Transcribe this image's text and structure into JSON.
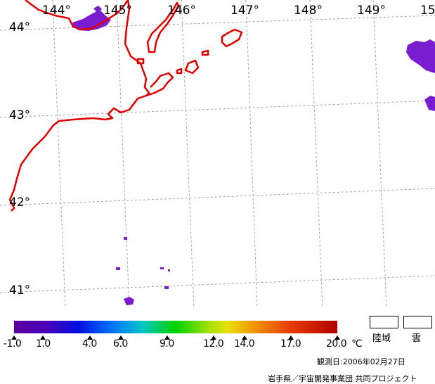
{
  "map": {
    "longitude_labels": [
      "144°",
      "145°",
      "146°",
      "147°",
      "148°",
      "149°",
      "15"
    ],
    "latitude_labels": [
      "44°",
      "43°",
      "42°",
      "41°"
    ],
    "colors": {
      "coastline": "#e00000",
      "cloud": "#7a1ccf",
      "grid": "#999999"
    }
  },
  "legend": {
    "ticks": [
      "-1.0",
      "1.0",
      "4.0",
      "6.0",
      "9.0",
      "12.0",
      "14.0",
      "17.0",
      "20.0"
    ],
    "unit": "℃",
    "land_label": "陸域",
    "cloud_label": "雲"
  },
  "observation_date": "観測日:2006年02月27日",
  "credit": "岩手県／宇宙開発事業団 共同プロジェクト"
}
